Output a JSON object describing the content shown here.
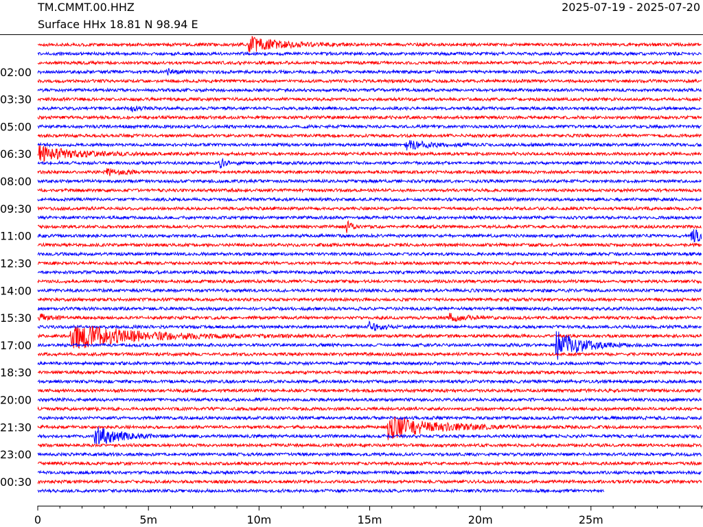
{
  "header": {
    "station": "TM.CMMT.00.HHZ",
    "location": "Surface HHx  18.81 N 98.94 E",
    "date_range": "2025-07-19 - 2025-07-20"
  },
  "chart_data": {
    "type": "line",
    "title": "TM.CMMT.00.HHZ",
    "subtitle": "Surface HHx  18.81 N 98.94 E",
    "xlabel": "",
    "ylabel": "",
    "x_ticks": [
      "0",
      "5m",
      "10m",
      "15m",
      "20m",
      "25m"
    ],
    "x_tick_values_min": [
      0,
      5,
      10,
      15,
      20,
      25
    ],
    "xlim_min": [
      0,
      30
    ],
    "last_row_end_min": 25.6,
    "trace_count": 50,
    "trace_colors": [
      "#ff0000",
      "#0000ff"
    ],
    "y_tick_labels": [
      {
        "row": 3,
        "label": "02:00"
      },
      {
        "row": 6,
        "label": "03:30"
      },
      {
        "row": 9,
        "label": "05:00"
      },
      {
        "row": 12,
        "label": "06:30"
      },
      {
        "row": 15,
        "label": "08:00"
      },
      {
        "row": 18,
        "label": "09:30"
      },
      {
        "row": 21,
        "label": "11:00"
      },
      {
        "row": 24,
        "label": "12:30"
      },
      {
        "row": 27,
        "label": "14:00"
      },
      {
        "row": 30,
        "label": "15:30"
      },
      {
        "row": 33,
        "label": "17:00"
      },
      {
        "row": 36,
        "label": "18:30"
      },
      {
        "row": 39,
        "label": "20:00"
      },
      {
        "row": 42,
        "label": "21:30"
      },
      {
        "row": 45,
        "label": "23:00"
      },
      {
        "row": 48,
        "label": "00:30"
      }
    ],
    "events": [
      {
        "row": 0,
        "minute": 9.5,
        "amplitude": 4,
        "duration_min": 2.0
      },
      {
        "row": 3,
        "minute": 5.8,
        "amplitude": 1.3,
        "duration_min": 0.6
      },
      {
        "row": 7,
        "minute": 4.2,
        "amplitude": 1.4,
        "duration_min": 0.6
      },
      {
        "row": 11,
        "minute": 16.6,
        "amplitude": 2.5,
        "duration_min": 1.5
      },
      {
        "row": 12,
        "minute": 0.05,
        "amplitude": 3.5,
        "duration_min": 2.5
      },
      {
        "row": 13,
        "minute": 8.25,
        "amplitude": 2,
        "duration_min": 0.5
      },
      {
        "row": 14,
        "minute": 3.1,
        "amplitude": 1.5,
        "duration_min": 1.0
      },
      {
        "row": 20,
        "minute": 13.9,
        "amplitude": 4,
        "duration_min": 0.4
      },
      {
        "row": 21,
        "minute": 29.5,
        "amplitude": 4,
        "duration_min": 0.8
      },
      {
        "row": 30,
        "minute": 0.05,
        "amplitude": 2,
        "duration_min": 0.8
      },
      {
        "row": 30,
        "minute": 18.6,
        "amplitude": 1.8,
        "duration_min": 1.2
      },
      {
        "row": 31,
        "minute": 14.9,
        "amplitude": 2.2,
        "duration_min": 1.0
      },
      {
        "row": 32,
        "minute": 1.45,
        "amplitude": 7,
        "duration_min": 4.0
      },
      {
        "row": 33,
        "minute": 23.4,
        "amplitude": 7,
        "duration_min": 1.8
      },
      {
        "row": 42,
        "minute": 15.8,
        "amplitude": 6,
        "duration_min": 3.0
      },
      {
        "row": 43,
        "minute": 2.55,
        "amplitude": 5,
        "duration_min": 1.6
      }
    ]
  }
}
